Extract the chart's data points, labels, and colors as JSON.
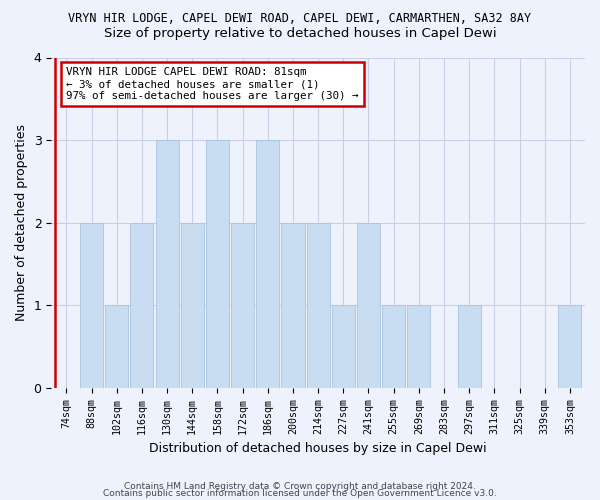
{
  "title": "VRYN HIR LODGE, CAPEL DEWI ROAD, CAPEL DEWI, CARMARTHEN, SA32 8AY",
  "subtitle": "Size of property relative to detached houses in Capel Dewi",
  "xlabel": "Distribution of detached houses by size in Capel Dewi",
  "ylabel": "Number of detached properties",
  "categories": [
    "74sqm",
    "88sqm",
    "102sqm",
    "116sqm",
    "130sqm",
    "144sqm",
    "158sqm",
    "172sqm",
    "186sqm",
    "200sqm",
    "214sqm",
    "227sqm",
    "241sqm",
    "255sqm",
    "269sqm",
    "283sqm",
    "297sqm",
    "311sqm",
    "325sqm",
    "339sqm",
    "353sqm"
  ],
  "values": [
    0,
    2,
    1,
    2,
    3,
    2,
    3,
    2,
    3,
    2,
    2,
    1,
    2,
    1,
    1,
    0,
    1,
    0,
    0,
    0,
    1
  ],
  "bar_color": "#c9ddf2",
  "bar_edge_color": "#a8c4e0",
  "highlight_line_color": "#cc0000",
  "ylim": [
    0,
    4
  ],
  "yticks": [
    0,
    1,
    2,
    3,
    4
  ],
  "annotation_line1": "VRYN HIR LODGE CAPEL DEWI ROAD: 81sqm",
  "annotation_line2": "← 3% of detached houses are smaller (1)",
  "annotation_line3": "97% of semi-detached houses are larger (30) →",
  "annotation_box_color": "#ffffff",
  "annotation_border_color": "#cc0000",
  "footer_line1": "Contains HM Land Registry data © Crown copyright and database right 2024.",
  "footer_line2": "Contains public sector information licensed under the Open Government Licence v3.0.",
  "background_color": "#eef2fc",
  "grid_color": "#c8d0e8",
  "title_fontsize": 8.5,
  "subtitle_fontsize": 9.5
}
